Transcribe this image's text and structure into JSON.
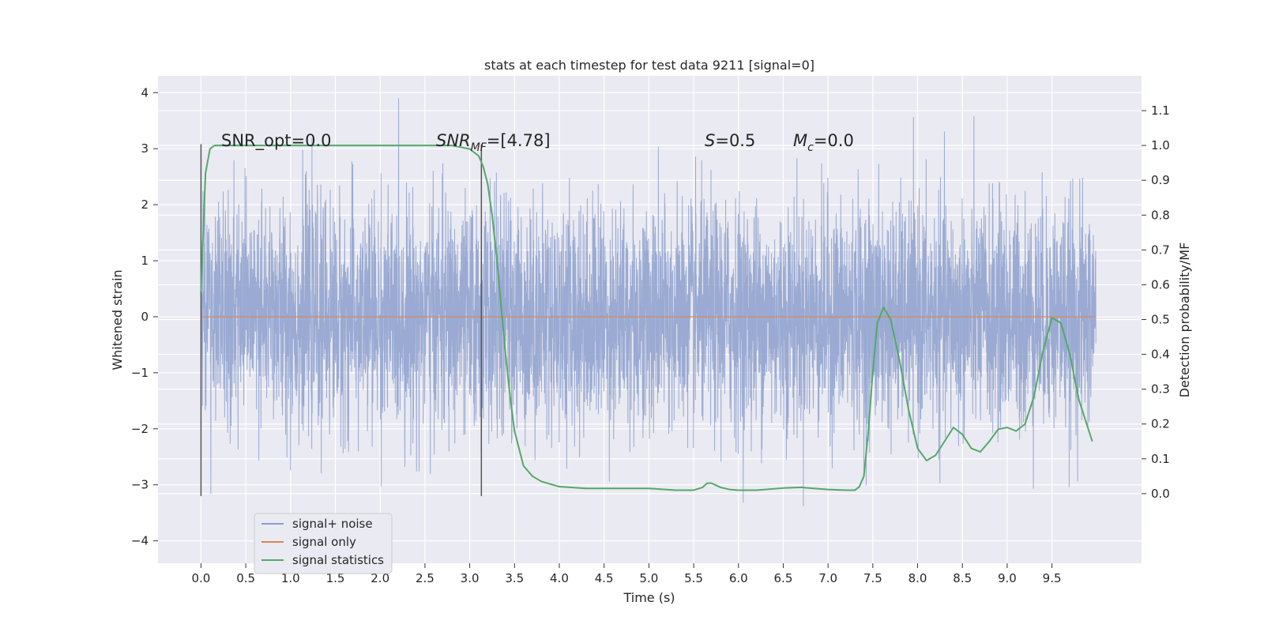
{
  "chart_data": {
    "type": "line",
    "title": "stats at each timestep for test data 9211 [signal=0]",
    "xlabel": "Time (s)",
    "ylabel": "Whitened strain",
    "ylabel_right": "Detection probability/MF",
    "xlim": [
      -0.48,
      10.5
    ],
    "ylim": [
      -4.4,
      4.3
    ],
    "ylim_right": [
      -0.2,
      1.2
    ],
    "x_ticks": [
      "0.0",
      "0.5",
      "1.0",
      "1.5",
      "2.0",
      "2.5",
      "3.0",
      "3.5",
      "4.0",
      "4.5",
      "5.0",
      "5.5",
      "6.0",
      "6.5",
      "7.0",
      "7.5",
      "8.0",
      "8.5",
      "9.0",
      "9.5"
    ],
    "y_ticks": [
      "4",
      "3",
      "2",
      "1",
      "0",
      "−1",
      "−2",
      "−3",
      "−4"
    ],
    "y_ticks_right": [
      "1.1",
      "1.0",
      "0.9",
      "0.8",
      "0.7",
      "0.6",
      "0.5",
      "0.4",
      "0.3",
      "0.2",
      "0.1",
      "0.0"
    ],
    "grid": true,
    "legend_position": "lower-left",
    "annotations": {
      "snr_opt": "SNR_opt=0.0",
      "snr_mf_sym": "SNR",
      "snr_mf_sub": "MF",
      "snr_mf_val": "=[4.78]",
      "s_sym": "S",
      "s_val": "=0.5",
      "mc_sym": "M",
      "mc_sub": "c",
      "mc_val": "=0.0"
    },
    "vlines_x": [
      0.0,
      3.13
    ],
    "series": [
      {
        "name": "signal+ noise",
        "color": "#8c9fcc",
        "x_start": 0.0,
        "x_end": 9.99,
        "approx_range": [
          -4.0,
          3.9
        ]
      },
      {
        "name": "signal only",
        "color": "#dd8452",
        "x": [
          0.0,
          9.99
        ],
        "y": [
          0.0,
          0.0
        ]
      },
      {
        "name": "signal statistics",
        "color": "#55a868",
        "axis": "right",
        "x": [
          0.0,
          0.05,
          0.1,
          0.15,
          0.25,
          0.4,
          0.6,
          1.0,
          1.5,
          2.0,
          2.5,
          2.8,
          3.0,
          3.1,
          3.15,
          3.2,
          3.25,
          3.3,
          3.35,
          3.4,
          3.45,
          3.5,
          3.6,
          3.7,
          3.8,
          4.0,
          4.3,
          4.6,
          5.0,
          5.3,
          5.5,
          5.6,
          5.65,
          5.7,
          5.8,
          5.9,
          6.0,
          6.2,
          6.5,
          6.7,
          7.0,
          7.2,
          7.3,
          7.35,
          7.4,
          7.45,
          7.5,
          7.55,
          7.62,
          7.7,
          7.8,
          7.9,
          8.0,
          8.1,
          8.2,
          8.3,
          8.4,
          8.5,
          8.6,
          8.7,
          8.8,
          8.9,
          9.0,
          9.1,
          9.2,
          9.3,
          9.4,
          9.5,
          9.6,
          9.7,
          9.8,
          9.9,
          9.95
        ],
        "y": [
          0.58,
          0.92,
          0.99,
          1.0,
          1.0,
          1.0,
          1.0,
          1.0,
          1.0,
          1.0,
          1.0,
          1.0,
          0.99,
          0.97,
          0.94,
          0.89,
          0.8,
          0.68,
          0.54,
          0.4,
          0.28,
          0.18,
          0.08,
          0.05,
          0.035,
          0.02,
          0.015,
          0.015,
          0.015,
          0.01,
          0.01,
          0.018,
          0.03,
          0.03,
          0.018,
          0.012,
          0.01,
          0.01,
          0.016,
          0.018,
          0.012,
          0.01,
          0.01,
          0.02,
          0.05,
          0.18,
          0.35,
          0.49,
          0.535,
          0.5,
          0.38,
          0.24,
          0.13,
          0.095,
          0.11,
          0.15,
          0.19,
          0.17,
          0.13,
          0.12,
          0.15,
          0.185,
          0.19,
          0.18,
          0.2,
          0.28,
          0.41,
          0.505,
          0.49,
          0.4,
          0.27,
          0.19,
          0.15
        ]
      }
    ]
  }
}
